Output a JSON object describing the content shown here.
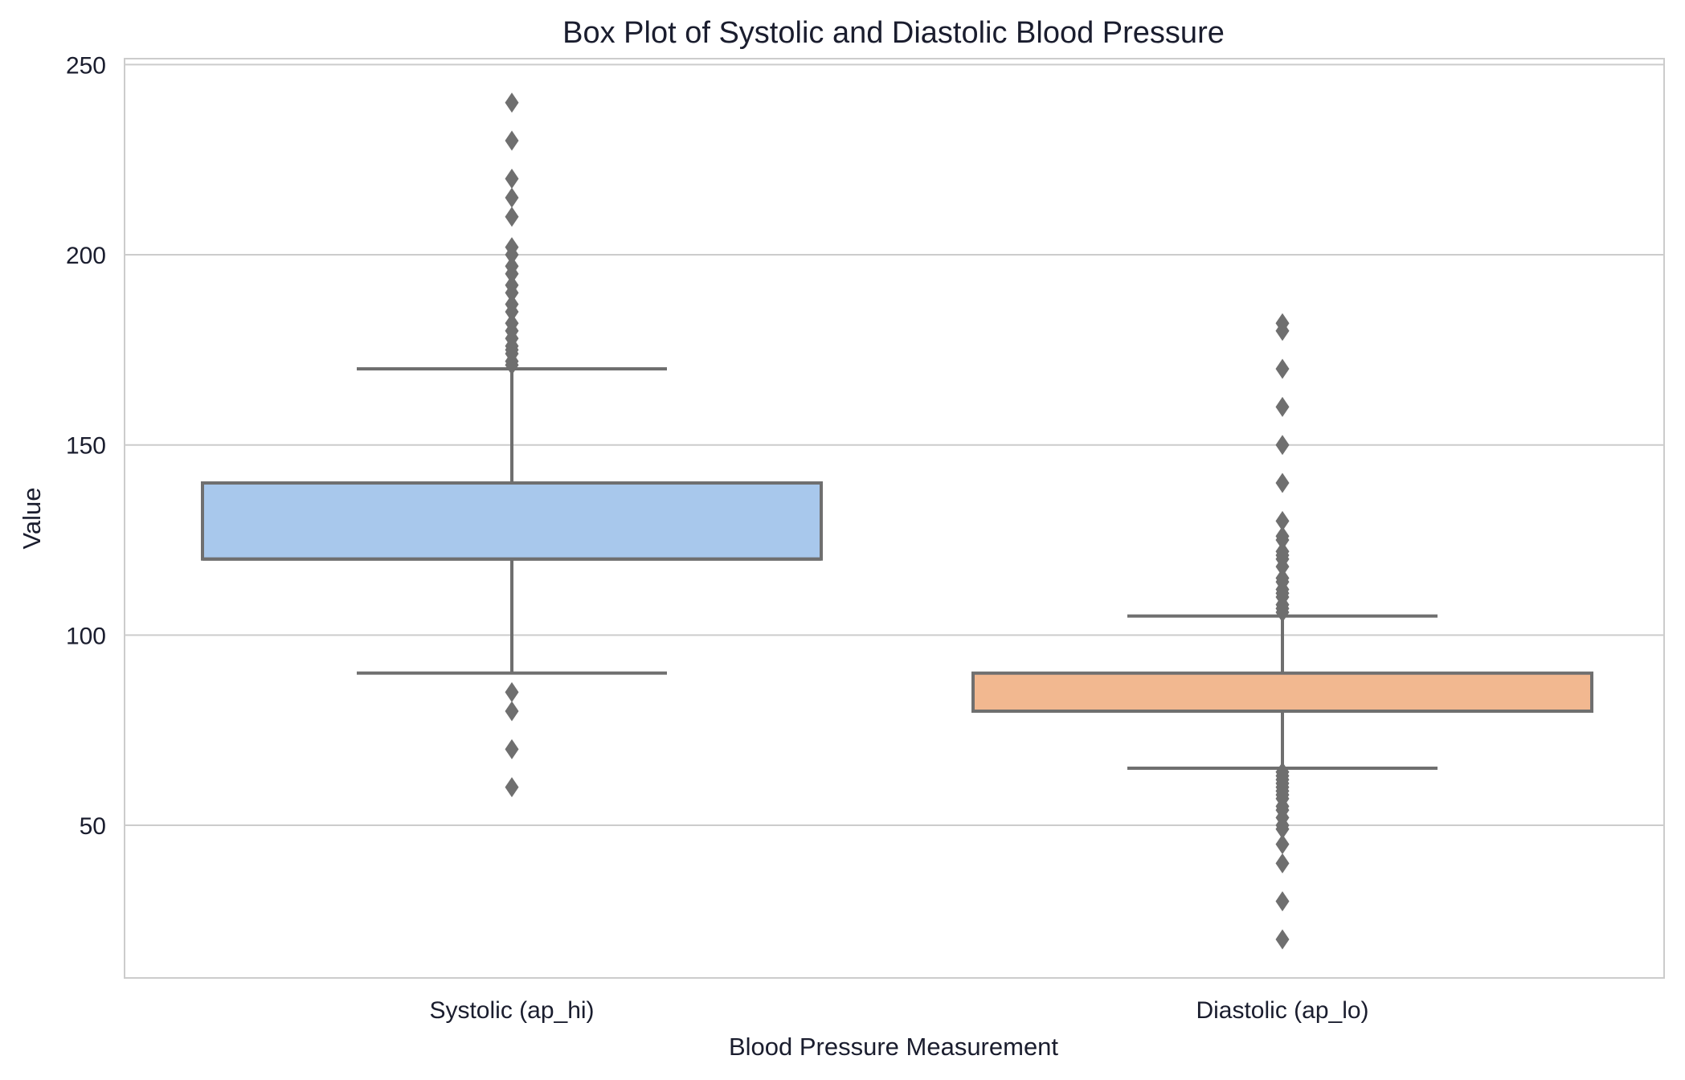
{
  "chart_data": {
    "type": "box",
    "title": "Box Plot of Systolic and Diastolic Blood Pressure",
    "xlabel": "Blood Pressure Measurement",
    "ylabel": "Value",
    "ylim": [
      10,
      252
    ],
    "yticks": [
      50,
      100,
      150,
      200,
      250
    ],
    "grid": true,
    "categories": [
      "Systolic (ap_hi)",
      "Diastolic (ap_lo)"
    ],
    "boxes": [
      {
        "category": "Systolic (ap_hi)",
        "color": "#a8c8ec",
        "q1": 120,
        "median": 120,
        "q3": 140,
        "whisker_low": 90,
        "whisker_high": 170,
        "outliers": [
          60,
          70,
          80,
          85,
          171,
          172,
          174,
          175,
          176,
          178,
          180,
          182,
          185,
          187,
          190,
          192,
          195,
          197,
          200,
          202,
          210,
          215,
          220,
          230,
          240
        ]
      },
      {
        "category": "Diastolic (ap_lo)",
        "color": "#f2b890",
        "q1": 80,
        "median": 80,
        "q3": 90,
        "whisker_low": 65,
        "whisker_high": 105,
        "outliers": [
          20,
          30,
          40,
          45,
          49,
          50,
          52,
          54,
          55,
          57,
          58,
          59,
          60,
          61,
          62,
          63,
          64,
          106,
          107,
          108,
          110,
          111,
          112,
          114,
          115,
          118,
          120,
          121,
          122,
          125,
          126,
          130,
          140,
          150,
          160,
          170,
          180,
          182
        ]
      }
    ],
    "colors": {
      "edge": "#6f6f6f",
      "grid": "#cccccc",
      "frame": "#cccccc",
      "text": "#1a1d2e"
    }
  }
}
